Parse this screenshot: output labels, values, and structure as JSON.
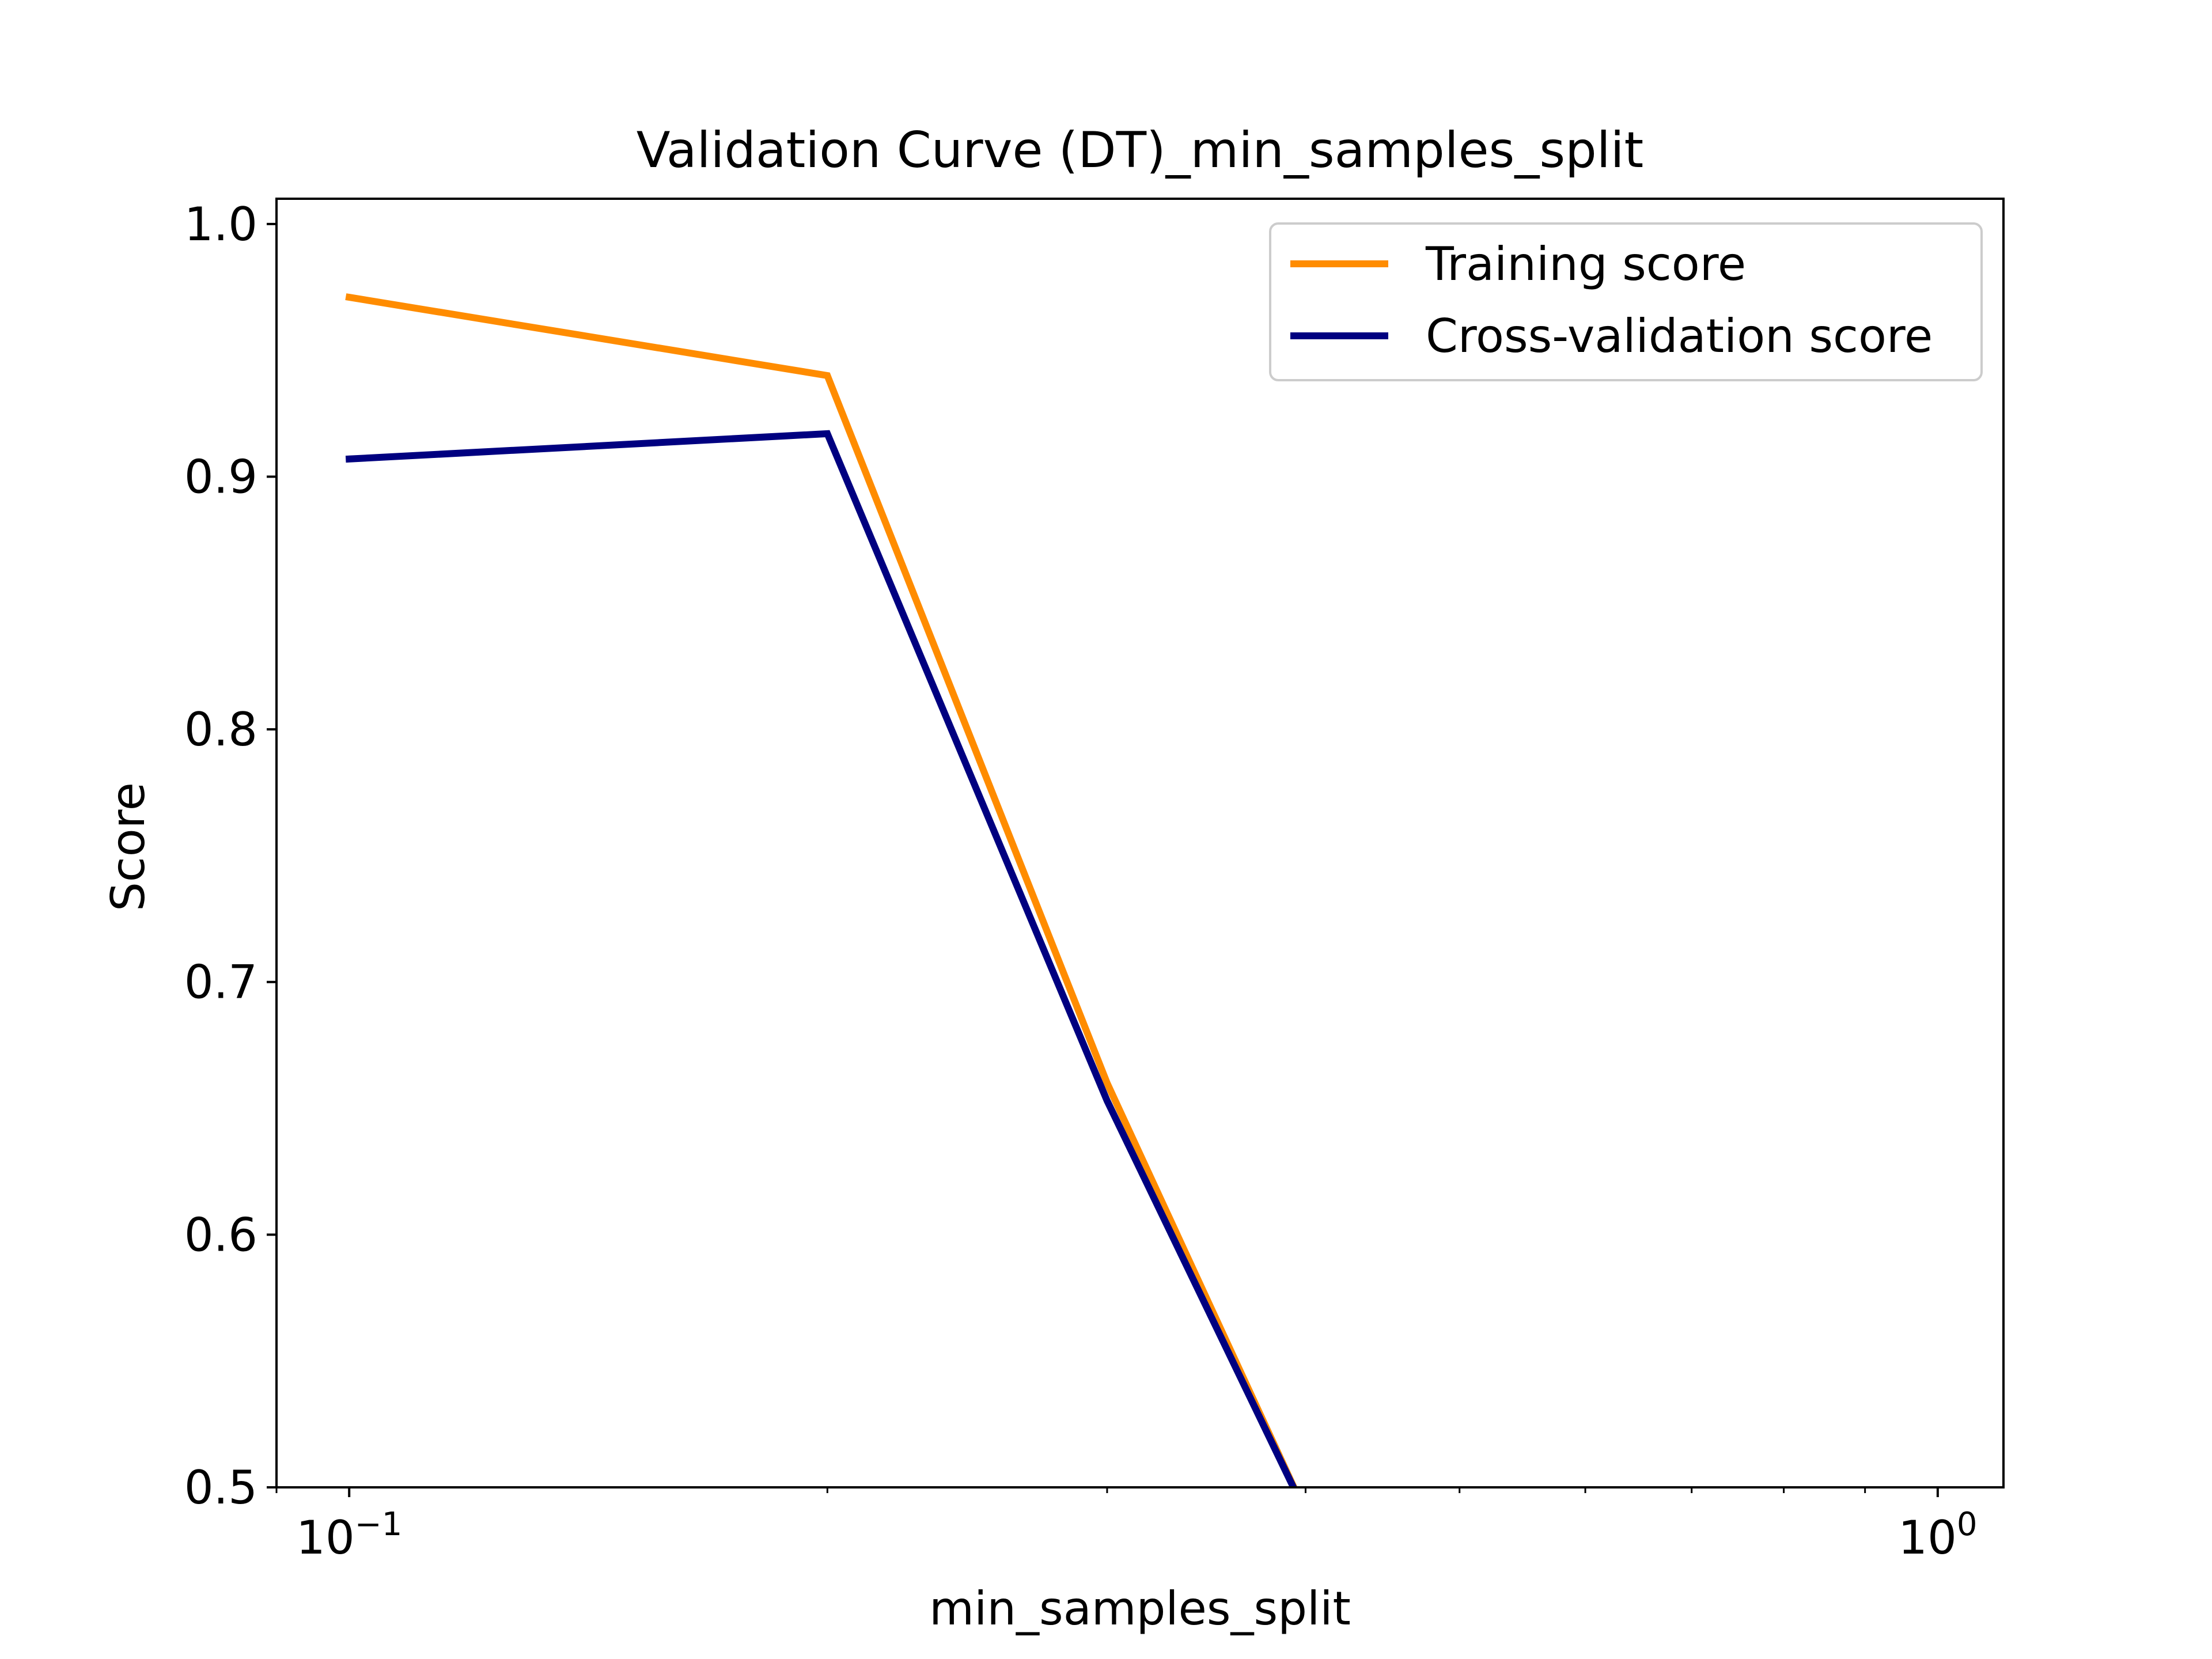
{
  "chart_data": {
    "type": "line",
    "title": "Validation Curve (DT)_min_samples_split",
    "xlabel": "min_samples_split",
    "ylabel": "Score",
    "xscale": "log",
    "xlim": [
      0.09,
      1.1
    ],
    "ylim": [
      0.5,
      1.01
    ],
    "grid": false,
    "legend_position": "top-right",
    "y_ticks": [
      "0.5",
      "0.6",
      "0.7",
      "0.8",
      "0.9",
      "1.0"
    ],
    "x_ticks": [
      {
        "value": 0.1,
        "base": "10",
        "exponent": "−1"
      },
      {
        "value": 1.0,
        "base": "10",
        "exponent": "0"
      }
    ],
    "series": [
      {
        "name": "Training score",
        "color": "#ff8c00",
        "x": [
          0.1,
          0.2,
          0.3,
          0.4,
          0.5,
          0.6,
          0.7,
          0.8,
          0.9,
          1.0
        ],
        "y": [
          0.971,
          0.94,
          0.66,
          0.49,
          0.49,
          0.49,
          0.49,
          0.49,
          0.49,
          0.49
        ]
      },
      {
        "name": "Cross-validation score",
        "color": "#000080",
        "x": [
          0.1,
          0.2,
          0.3,
          0.4,
          0.5,
          0.6,
          0.7,
          0.8,
          0.9,
          1.0
        ],
        "y": [
          0.907,
          0.917,
          0.653,
          0.49,
          0.49,
          0.49,
          0.49,
          0.49,
          0.49,
          0.49
        ]
      }
    ]
  }
}
